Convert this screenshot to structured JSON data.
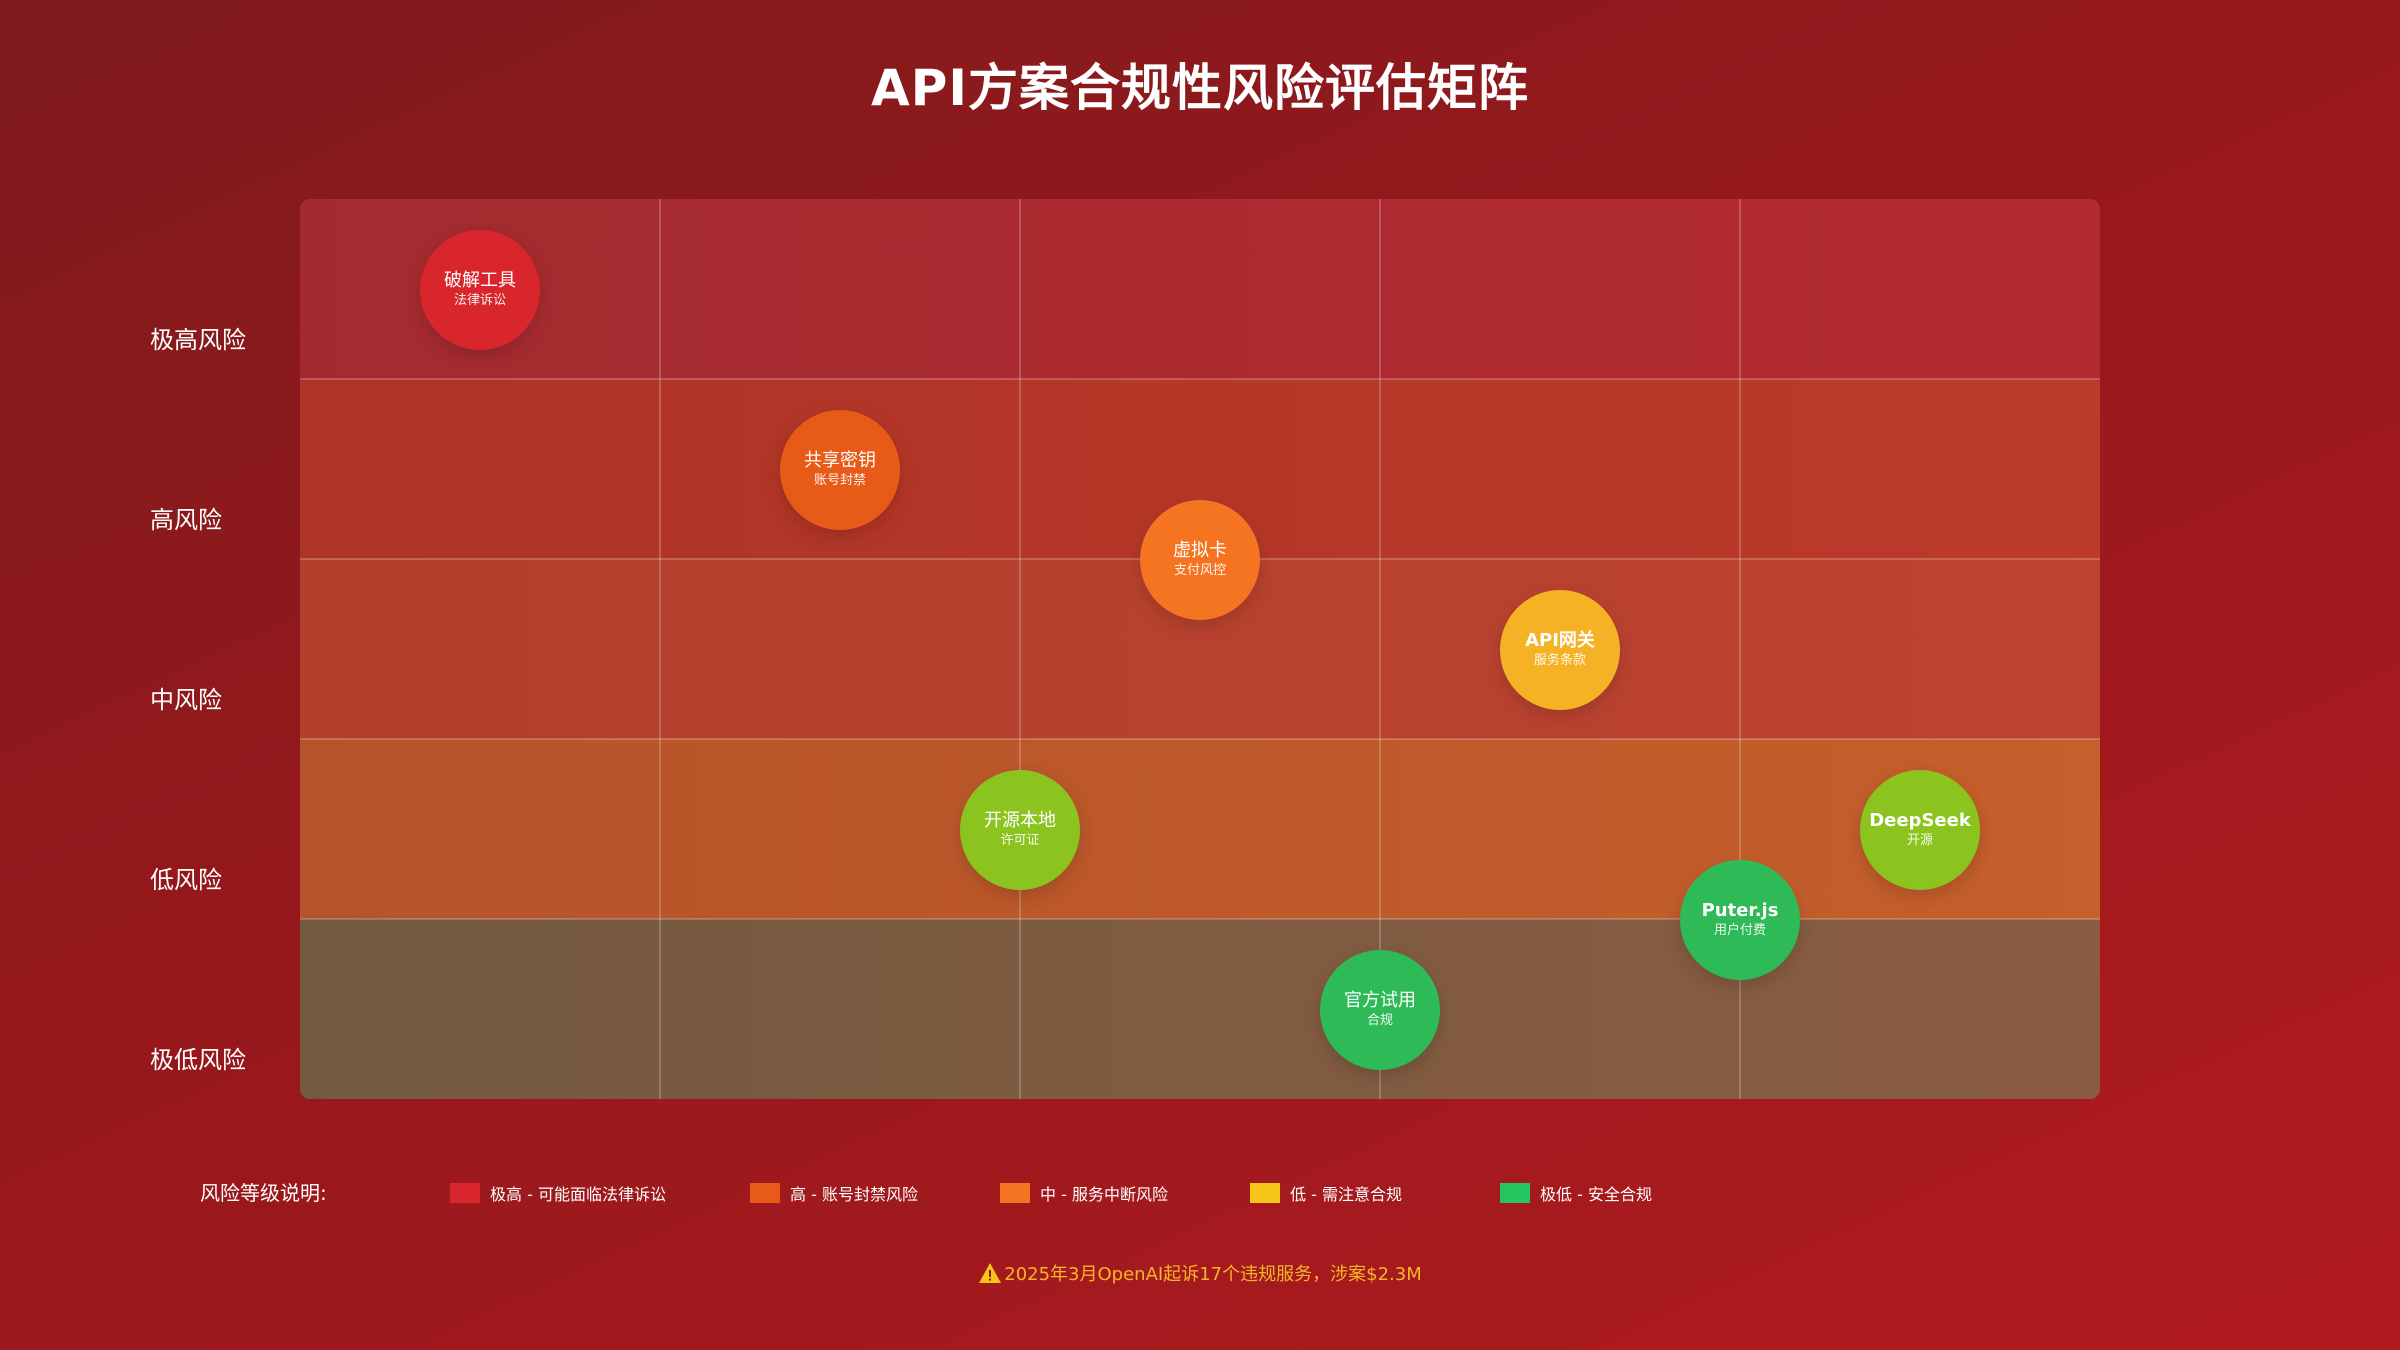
{
  "title": "API方案合规性风险评估矩阵",
  "risk_levels": [
    {
      "label": "极高风险"
    },
    {
      "label": "高风险"
    },
    {
      "label": "中风险"
    },
    {
      "label": "低风险"
    },
    {
      "label": "极低风险"
    }
  ],
  "bubbles": [
    {
      "name": "破解工具",
      "note": "法律诉讼",
      "color": "#d8262c",
      "bold": false
    },
    {
      "name": "共享密钥",
      "note": "账号封禁",
      "color": "#e85a17",
      "bold": false
    },
    {
      "name": "虚拟卡",
      "note": "支付风控",
      "color": "#f47421",
      "bold": false
    },
    {
      "name": "API网关",
      "note": "服务条款",
      "color": "#f5b224",
      "bold": true
    },
    {
      "name": "开源本地",
      "note": "许可证",
      "color": "#8cc41f",
      "bold": false
    },
    {
      "name": "DeepSeek",
      "note": "开源",
      "color": "#8cc41f",
      "bold": true
    },
    {
      "name": "Puter.js",
      "note": "用户付费",
      "color": "#2fba58",
      "bold": true
    },
    {
      "name": "官方试用",
      "note": "合规",
      "color": "#2fba58",
      "bold": false
    }
  ],
  "legend": {
    "title": "风险等级说明:",
    "items": [
      {
        "label": "极高 - 可能面临法律诉讼",
        "color": "#d8262c"
      },
      {
        "label": "高 - 账号封禁风险",
        "color": "#e85a17"
      },
      {
        "label": "中 - 服务中断风险",
        "color": "#f47421"
      },
      {
        "label": "低 - 需注意合规",
        "color": "#f5c518"
      },
      {
        "label": "极低 - 安全合规",
        "color": "#22c55e"
      }
    ]
  },
  "footnote": {
    "icon": "warning-icon",
    "text": "2025年3月OpenAI起诉17个违规服务，涉案$2.3M"
  }
}
